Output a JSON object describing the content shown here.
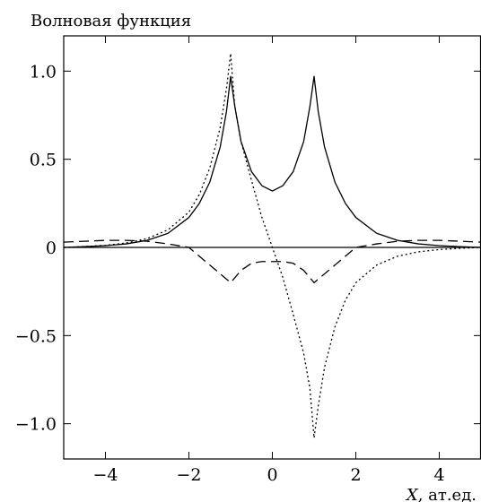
{
  "chart_data": {
    "type": "line",
    "title": "",
    "ylabel": "Волновая функция",
    "xlabel_var": "X",
    "xlabel_unit": ", ат.ед.",
    "xlim": [
      -5,
      5
    ],
    "ylim": [
      -1.2,
      1.2
    ],
    "xticks": [
      -4,
      -2,
      0,
      2,
      4
    ],
    "xtick_labels": [
      "−4",
      "−2",
      "0",
      "2",
      "4"
    ],
    "yticks": [
      1.0,
      0.5,
      0,
      -0.5,
      -1.0
    ],
    "ytick_labels": [
      "1.0",
      "0.5",
      "0",
      "−0.5",
      "−1.0"
    ],
    "grid": false,
    "legend": "none",
    "series": [
      {
        "style": "solid",
        "x": [
          -5,
          -4.5,
          -4,
          -3.5,
          -3,
          -2.5,
          -2,
          -1.75,
          -1.5,
          -1.25,
          -1.1,
          -1.0,
          -0.9,
          -0.75,
          -0.5,
          -0.25,
          0,
          0.25,
          0.5,
          0.75,
          0.9,
          1.0,
          1.1,
          1.25,
          1.5,
          1.75,
          2,
          2.5,
          3,
          3.5,
          4,
          4.5,
          5
        ],
        "values": [
          0.0,
          0.004,
          0.01,
          0.02,
          0.04,
          0.08,
          0.17,
          0.25,
          0.37,
          0.57,
          0.77,
          0.97,
          0.8,
          0.6,
          0.43,
          0.35,
          0.32,
          0.35,
          0.43,
          0.6,
          0.8,
          0.97,
          0.77,
          0.57,
          0.37,
          0.25,
          0.17,
          0.08,
          0.04,
          0.02,
          0.01,
          0.004,
          0.0
        ]
      },
      {
        "style": "dotted",
        "x": [
          -5,
          -4.5,
          -4,
          -3.5,
          -3,
          -2.5,
          -2,
          -1.75,
          -1.5,
          -1.25,
          -1.1,
          -1.0,
          -0.9,
          -0.75,
          -0.5,
          -0.25,
          0,
          0.25,
          0.5,
          0.75,
          0.9,
          1.0,
          1.1,
          1.25,
          1.5,
          1.75,
          2,
          2.5,
          3,
          3.5,
          4,
          4.5,
          5
        ],
        "values": [
          0.0,
          0.005,
          0.012,
          0.025,
          0.05,
          0.1,
          0.2,
          0.3,
          0.45,
          0.68,
          0.9,
          1.1,
          0.8,
          0.6,
          0.38,
          0.17,
          0.0,
          -0.17,
          -0.38,
          -0.6,
          -0.8,
          -1.08,
          -0.9,
          -0.68,
          -0.45,
          -0.3,
          -0.2,
          -0.1,
          -0.05,
          -0.025,
          -0.012,
          -0.005,
          0.0
        ]
      },
      {
        "style": "dashed",
        "x": [
          -5,
          -4.5,
          -4,
          -3.5,
          -3,
          -2.5,
          -2,
          -1.75,
          -1.5,
          -1.25,
          -1.0,
          -0.75,
          -0.5,
          -0.25,
          0,
          0.25,
          0.5,
          0.75,
          1.0,
          1.25,
          1.5,
          1.75,
          2,
          2.5,
          3,
          3.5,
          4,
          4.5,
          5
        ],
        "values": [
          0.03,
          0.035,
          0.04,
          0.04,
          0.035,
          0.02,
          0.0,
          -0.05,
          -0.1,
          -0.15,
          -0.2,
          -0.13,
          -0.09,
          -0.08,
          -0.08,
          -0.08,
          -0.09,
          -0.13,
          -0.2,
          -0.15,
          -0.1,
          -0.05,
          0.0,
          0.02,
          0.035,
          0.04,
          0.04,
          0.035,
          0.03
        ]
      }
    ]
  }
}
